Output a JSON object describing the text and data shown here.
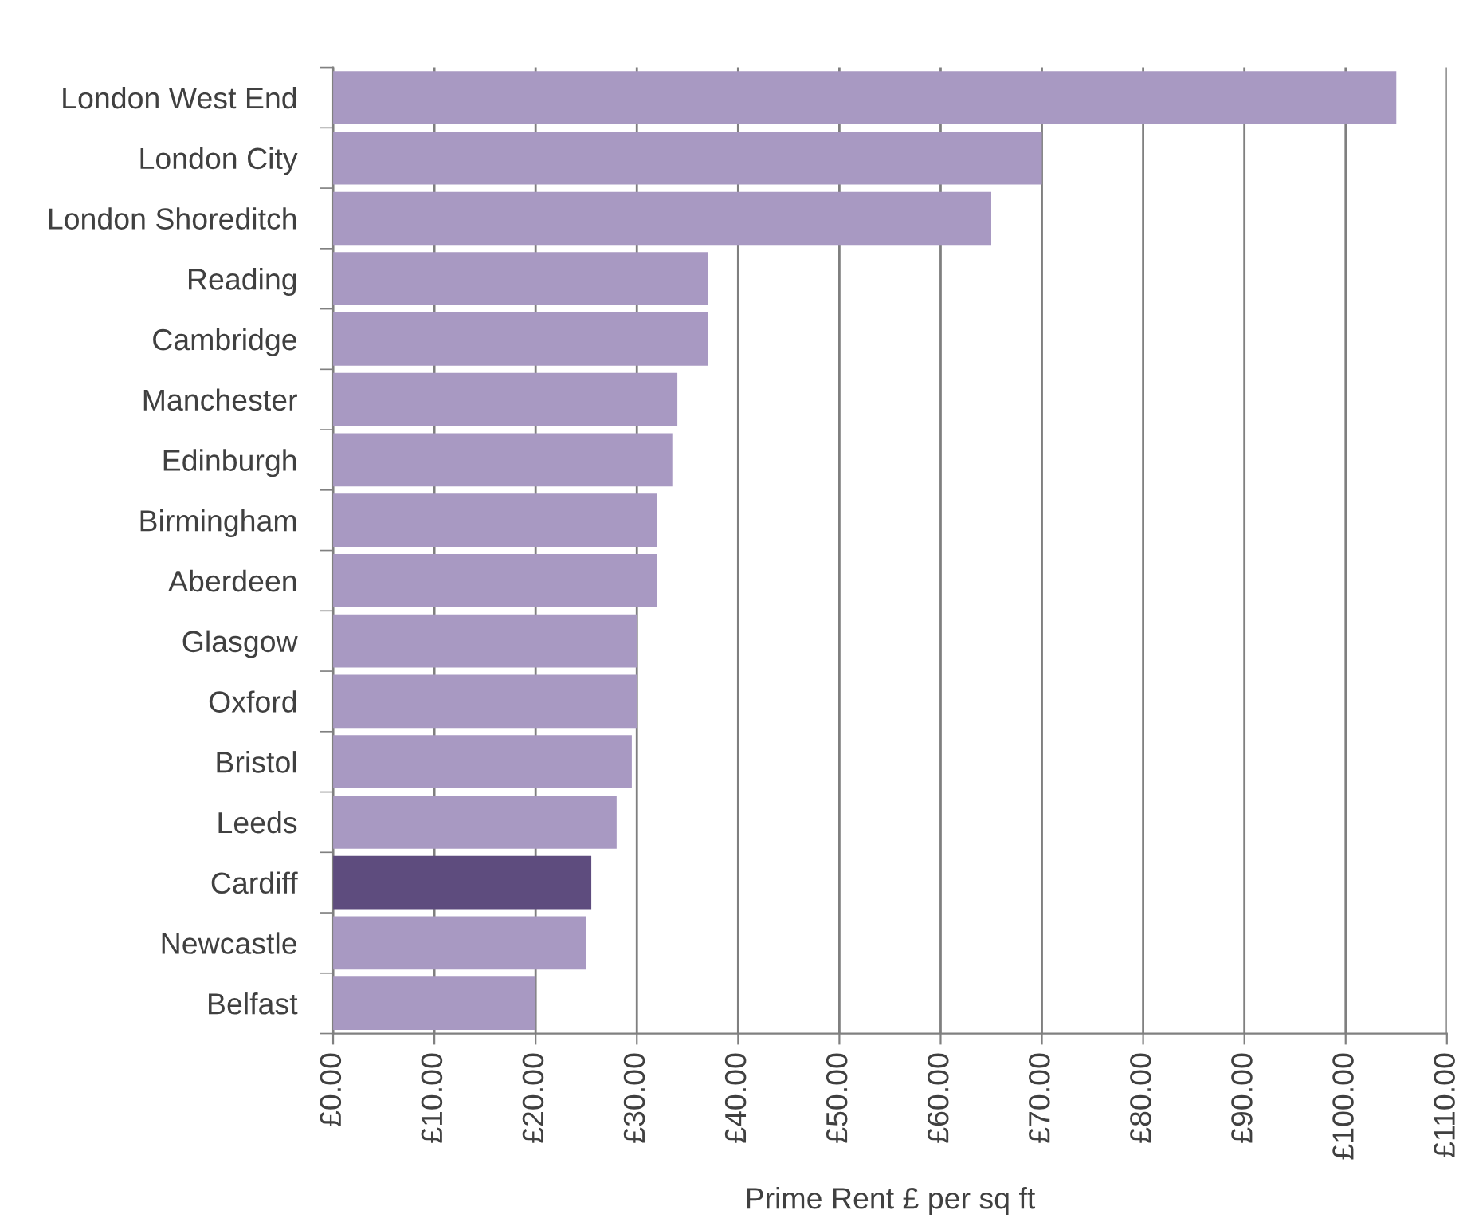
{
  "chart_data": {
    "type": "bar",
    "orientation": "horizontal",
    "xlabel": "Prime Rent £ per sq ft",
    "categories": [
      "London West End",
      "London City",
      "London Shoreditch",
      "Reading",
      "Cambridge",
      "Manchester",
      "Edinburgh",
      "Birmingham",
      "Aberdeen",
      "Glasgow",
      "Oxford",
      "Bristol",
      "Leeds",
      "Cardiff",
      "Newcastle",
      "Belfast"
    ],
    "values": [
      105,
      70,
      65,
      37,
      37,
      34,
      33.5,
      32,
      32,
      30,
      30,
      29.5,
      28,
      25.5,
      25,
      20
    ],
    "colors": [
      "#a899c2",
      "#a899c2",
      "#a899c2",
      "#a899c2",
      "#a899c2",
      "#a899c2",
      "#a899c2",
      "#a899c2",
      "#a899c2",
      "#a899c2",
      "#a899c2",
      "#a899c2",
      "#a899c2",
      "#5e4c7e",
      "#a899c2",
      "#a899c2"
    ],
    "xlim": [
      0,
      110
    ],
    "xticks": [
      {
        "value": 0,
        "label": "£0.00"
      },
      {
        "value": 10,
        "label": "£10.00"
      },
      {
        "value": 20,
        "label": "£20.00"
      },
      {
        "value": 30,
        "label": "£30.00"
      },
      {
        "value": 40,
        "label": "£40.00"
      },
      {
        "value": 50,
        "label": "£50.00"
      },
      {
        "value": 60,
        "label": "£60.00"
      },
      {
        "value": 70,
        "label": "£70.00"
      },
      {
        "value": 80,
        "label": "£80.00"
      },
      {
        "value": 90,
        "label": "£90.00"
      },
      {
        "value": 100,
        "label": "£100.00"
      },
      {
        "value": 110,
        "label": "£110.00"
      }
    ],
    "grid": "x"
  }
}
